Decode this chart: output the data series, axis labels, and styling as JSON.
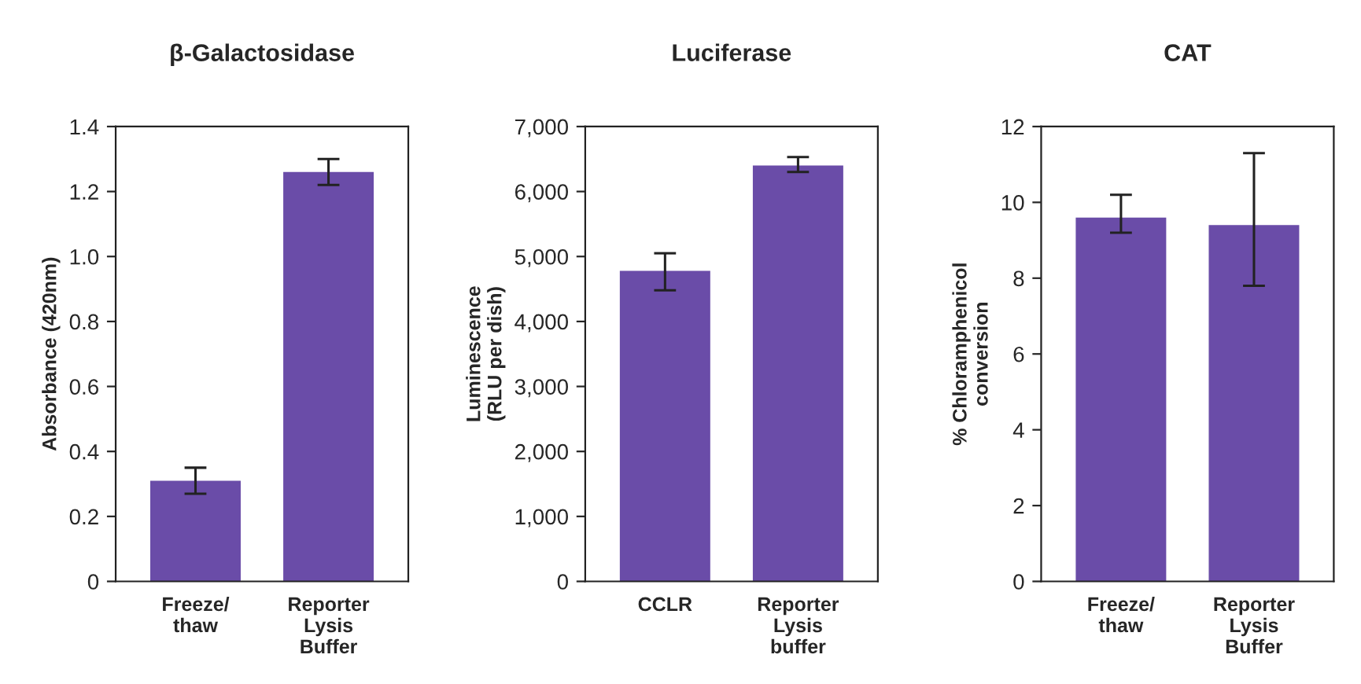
{
  "chart_data": [
    {
      "type": "bar",
      "title": "β-Galactosidase",
      "ylabel": "Absorbance (420nm)",
      "categories": [
        "Freeze/\nthaw",
        "Reporter\nLysis\nBuffer"
      ],
      "values": [
        0.31,
        1.26
      ],
      "errors": [
        [
          0.27,
          0.35
        ],
        [
          1.22,
          1.3
        ]
      ],
      "color": "#6a4ca8",
      "ylim": [
        0,
        1.4
      ],
      "yticks": [
        {
          "value": 0,
          "label": "0"
        },
        0.2,
        0.4,
        0.6,
        0.8,
        {
          "value": 1.0,
          "label": "1.0"
        },
        1.2,
        1.4
      ],
      "grid": false,
      "legend": false
    },
    {
      "type": "bar",
      "title": "Luciferase",
      "ylabel": "Luminescence\n(RLU per dish)",
      "categories": [
        "CCLR",
        "Reporter\nLysis\nbuffer"
      ],
      "values": [
        4780,
        6400
      ],
      "errors": [
        [
          4480,
          5050
        ],
        [
          6300,
          6530
        ]
      ],
      "color": "#6a4ca8",
      "ylim": [
        0,
        7000
      ],
      "yticks": [
        {
          "value": 0,
          "label": "0"
        },
        {
          "value": 1000,
          "label": "1,000"
        },
        {
          "value": 2000,
          "label": "2,000"
        },
        {
          "value": 3000,
          "label": "3,000"
        },
        {
          "value": 4000,
          "label": "4,000"
        },
        {
          "value": 5000,
          "label": "5,000"
        },
        {
          "value": 6000,
          "label": "6,000"
        },
        {
          "value": 7000,
          "label": "7,000"
        }
      ],
      "grid": false,
      "legend": false
    },
    {
      "type": "bar",
      "title": "CAT",
      "ylabel": "% Chloramphenicol\nconversion",
      "categories": [
        "Freeze/\nthaw",
        "Reporter\nLysis\nBuffer"
      ],
      "values": [
        9.6,
        9.4
      ],
      "errors": [
        [
          9.2,
          10.2
        ],
        [
          7.8,
          11.3
        ]
      ],
      "color": "#6a4ca8",
      "ylim": [
        0,
        12
      ],
      "yticks": [
        0,
        2,
        4,
        6,
        8,
        10,
        12
      ],
      "grid": false,
      "legend": false
    }
  ]
}
